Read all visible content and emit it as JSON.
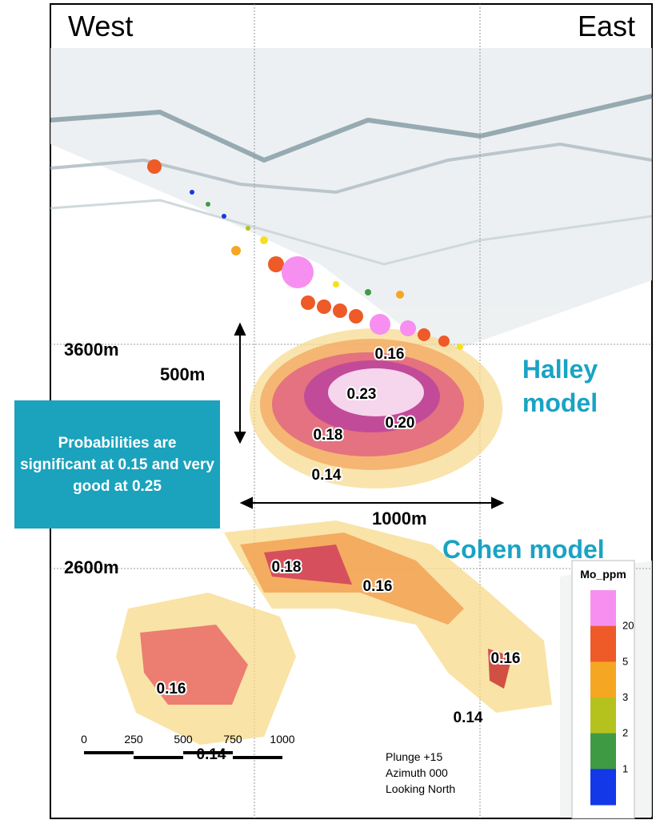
{
  "orientation": {
    "west": "West",
    "east": "East"
  },
  "elevations": [
    "3600m",
    "2600m"
  ],
  "dimensions": {
    "vertical": "500m",
    "horizontal": "1000m"
  },
  "models": {
    "halley": "Halley model",
    "cohen": "Cohen model"
  },
  "callout": "Probabilities are significant at 0.15 and very good at 0.25",
  "probability_labels": [
    "0.16",
    "0.23",
    "0.20",
    "0.18",
    "0.14",
    "0.18",
    "0.16",
    "0.16",
    "0.16",
    "0.14",
    "0.14"
  ],
  "legend": {
    "title": "Mo_ppm",
    "labels": [
      "20",
      "5",
      "3",
      "2",
      "1"
    ],
    "colors": [
      "#f78ff0",
      "#ee5a28",
      "#f5a623",
      "#b5c21d",
      "#3f9a44",
      "#1238e8"
    ]
  },
  "scale_bar": [
    "0",
    "250",
    "500",
    "750",
    "1000"
  ],
  "view": [
    "Plunge +15",
    "Azimuth 000",
    "Looking North"
  ]
}
